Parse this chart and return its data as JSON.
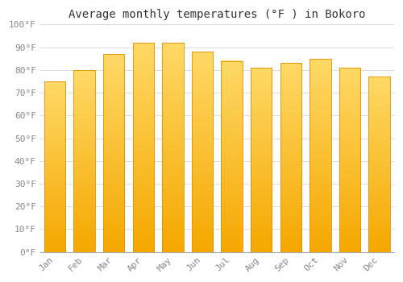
{
  "title": "Average monthly temperatures (°F ) in Bokoro",
  "months": [
    "Jan",
    "Feb",
    "Mar",
    "Apr",
    "May",
    "Jun",
    "Jul",
    "Aug",
    "Sep",
    "Oct",
    "Nov",
    "Dec"
  ],
  "values": [
    75,
    80,
    87,
    92,
    92,
    88,
    84,
    81,
    83,
    85,
    81,
    77
  ],
  "bar_color_top": "#FFD966",
  "bar_color_bottom": "#F5A800",
  "bar_edge_color": "#E09000",
  "background_color": "#FFFFFF",
  "grid_color": "#DDDDDD",
  "ylim": [
    0,
    100
  ],
  "ytick_step": 10,
  "title_fontsize": 10,
  "tick_fontsize": 8,
  "font_family": "monospace",
  "tick_color": "#888888"
}
